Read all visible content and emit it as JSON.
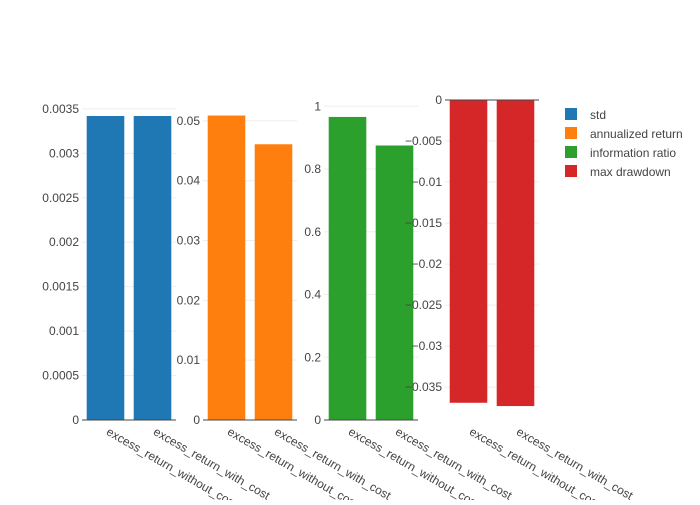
{
  "chart_data": [
    {
      "type": "bar",
      "categories": [
        "excess_return_without_cost",
        "excess_return_with_cost"
      ],
      "series": [
        {
          "name": "std",
          "values": [
            0.00342,
            0.00342
          ],
          "color": "#1f77b4"
        }
      ],
      "ylim": [
        0,
        0.0036
      ],
      "yticks": [
        {
          "value": 0,
          "label": "0"
        },
        {
          "value": 0.0005,
          "label": "0.0005"
        },
        {
          "value": 0.001,
          "label": "0.001"
        },
        {
          "value": 0.0015,
          "label": "0.0015"
        },
        {
          "value": 0.002,
          "label": "0.002"
        },
        {
          "value": 0.0025,
          "label": "0.0025"
        },
        {
          "value": 0.003,
          "label": "0.003"
        },
        {
          "value": 0.0035,
          "label": "0.0035"
        }
      ],
      "grid": true
    },
    {
      "type": "bar",
      "categories": [
        "excess_return_without_cost",
        "excess_return_with_cost"
      ],
      "series": [
        {
          "name": "annualized return",
          "values": [
            0.0509,
            0.0461
          ],
          "color": "#ff7f0e"
        }
      ],
      "ylim": [
        0,
        0.0535
      ],
      "yticks": [
        {
          "value": 0,
          "label": "0"
        },
        {
          "value": 0.01,
          "label": "0.01"
        },
        {
          "value": 0.02,
          "label": "0.02"
        },
        {
          "value": 0.03,
          "label": "0.03"
        },
        {
          "value": 0.04,
          "label": "0.04"
        },
        {
          "value": 0.05,
          "label": "0.05"
        }
      ],
      "grid": true
    },
    {
      "type": "bar",
      "categories": [
        "excess_return_without_cost",
        "excess_return_with_cost"
      ],
      "series": [
        {
          "name": "information ratio",
          "values": [
            0.966,
            0.875
          ],
          "color": "#2ca02c"
        }
      ],
      "ylim": [
        0,
        1.02
      ],
      "yticks": [
        {
          "value": 0,
          "label": "0"
        },
        {
          "value": 0.2,
          "label": "0.2"
        },
        {
          "value": 0.4,
          "label": "0.4"
        },
        {
          "value": 0.6,
          "label": "0.6"
        },
        {
          "value": 0.8,
          "label": "0.8"
        },
        {
          "value": 1,
          "label": "1"
        }
      ],
      "grid": true
    },
    {
      "type": "bar",
      "categories": [
        "excess_return_without_cost",
        "excess_return_with_cost"
      ],
      "series": [
        {
          "name": "max drawdown",
          "values": [
            -0.0369,
            -0.0373
          ],
          "color": "#d62728"
        }
      ],
      "ylim": [
        -0.039,
        0
      ],
      "yticks": [
        {
          "value": 0,
          "label": "0"
        },
        {
          "value": -0.005,
          "label": "−0.005"
        },
        {
          "value": -0.01,
          "label": "−0.01"
        },
        {
          "value": -0.015,
          "label": "−0.015"
        },
        {
          "value": -0.02,
          "label": "−0.02"
        },
        {
          "value": -0.025,
          "label": "−0.025"
        },
        {
          "value": -0.03,
          "label": "−0.03"
        },
        {
          "value": -0.035,
          "label": "−0.035"
        }
      ],
      "grid": true
    }
  ],
  "legend": {
    "placement": "top-right",
    "items": [
      {
        "label": "std",
        "color": "#1f77b4"
      },
      {
        "label": "annualized return",
        "color": "#ff7f0e"
      },
      {
        "label": "information ratio",
        "color": "#2ca02c"
      },
      {
        "label": "max drawdown",
        "color": "#d62728"
      }
    ]
  }
}
